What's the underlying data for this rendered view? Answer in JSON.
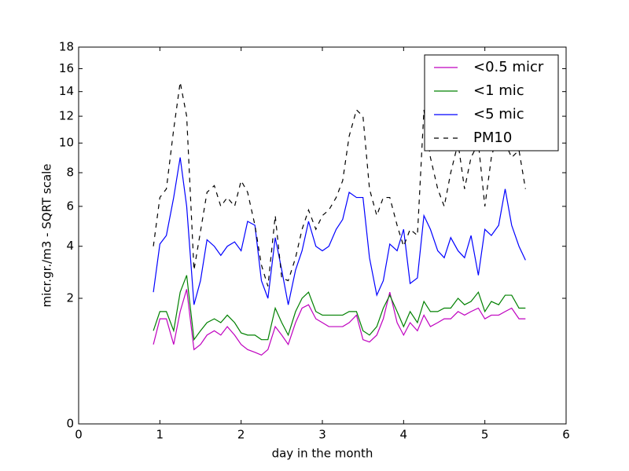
{
  "chart_data": {
    "type": "line",
    "xlabel": "day in the month",
    "ylabel": "micr.gr./m3 - SQRT scale",
    "yscale": "sqrt",
    "xlim": [
      0,
      6
    ],
    "xticks": [
      0,
      1,
      2,
      3,
      4,
      5,
      6
    ],
    "ylim": [
      0,
      18
    ],
    "yticks": [
      0,
      2,
      4,
      6,
      8,
      10,
      12,
      14,
      16,
      18
    ],
    "legend": "upper right",
    "x": [
      0.92,
      1.0,
      1.08,
      1.17,
      1.25,
      1.33,
      1.42,
      1.5,
      1.58,
      1.67,
      1.75,
      1.83,
      1.92,
      2.0,
      2.08,
      2.17,
      2.25,
      2.33,
      2.42,
      2.5,
      2.58,
      2.67,
      2.75,
      2.83,
      2.92,
      3.0,
      3.08,
      3.17,
      3.25,
      3.33,
      3.42,
      3.5,
      3.58,
      3.67,
      3.75,
      3.83,
      3.92,
      4.0,
      4.08,
      4.17,
      4.25,
      4.33,
      4.42,
      4.5,
      4.58,
      4.67,
      4.75,
      4.83,
      4.92,
      5.0,
      5.08,
      5.17,
      5.25,
      5.33,
      5.42,
      5.5
    ],
    "series": [
      {
        "name": "<0.5 micr",
        "color": "#bf00bf",
        "linestyle": "solid",
        "values": [
          0.8,
          1.4,
          1.4,
          0.8,
          1.6,
          2.3,
          0.7,
          0.8,
          1.0,
          1.1,
          1.0,
          1.2,
          1.0,
          0.8,
          0.7,
          0.65,
          0.6,
          0.7,
          1.2,
          1.0,
          0.8,
          1.3,
          1.7,
          1.8,
          1.4,
          1.3,
          1.2,
          1.2,
          1.2,
          1.3,
          1.5,
          0.9,
          0.85,
          1.0,
          1.4,
          2.2,
          1.3,
          1.0,
          1.3,
          1.1,
          1.5,
          1.2,
          1.3,
          1.4,
          1.4,
          1.6,
          1.5,
          1.6,
          1.7,
          1.4,
          1.5,
          1.5,
          1.6,
          1.7,
          1.4,
          1.4
        ]
      },
      {
        "name": "<1 mic",
        "color": "#008000",
        "linestyle": "solid",
        "values": [
          1.1,
          1.6,
          1.6,
          1.1,
          2.2,
          2.8,
          0.9,
          1.1,
          1.3,
          1.4,
          1.3,
          1.5,
          1.3,
          1.05,
          1.0,
          1.0,
          0.9,
          0.9,
          1.7,
          1.3,
          1.0,
          1.6,
          2.0,
          2.2,
          1.6,
          1.5,
          1.5,
          1.5,
          1.5,
          1.6,
          1.6,
          1.1,
          1.0,
          1.2,
          1.7,
          2.1,
          1.6,
          1.2,
          1.6,
          1.3,
          1.9,
          1.6,
          1.6,
          1.7,
          1.7,
          2.0,
          1.8,
          1.9,
          2.2,
          1.6,
          1.9,
          1.8,
          2.1,
          2.1,
          1.7,
          1.7
        ]
      },
      {
        "name": "<5 mic",
        "color": "#0000ff",
        "linestyle": "solid",
        "values": [
          2.2,
          4.1,
          4.5,
          6.5,
          9,
          6,
          1.8,
          2.6,
          4.3,
          4,
          3.6,
          4,
          4.2,
          3.8,
          5.2,
          5,
          2.6,
          2,
          4.4,
          3,
          1.8,
          3,
          3.8,
          5.2,
          4,
          3.8,
          4,
          4.8,
          5.3,
          6.8,
          6.5,
          6.5,
          3.5,
          2.1,
          2.6,
          4.1,
          3.8,
          4.8,
          2.5,
          2.7,
          5.5,
          4.8,
          3.8,
          3.5,
          4.4,
          3.8,
          3.5,
          4.5,
          2.8,
          4.8,
          4.5,
          5,
          7,
          5,
          4,
          3.4
        ]
      },
      {
        "name": "PM10",
        "color": "#000000",
        "linestyle": "dashed",
        "values": [
          4,
          6.5,
          7,
          11,
          14.8,
          12,
          3,
          4.7,
          6.8,
          7.2,
          6,
          6.5,
          6,
          7.5,
          6.8,
          5,
          3.2,
          2.4,
          5.5,
          2.7,
          2.6,
          3.5,
          4.8,
          5.8,
          4.8,
          5.5,
          5.8,
          6.5,
          7.5,
          10.5,
          12.5,
          12,
          7,
          5.5,
          6.5,
          6.5,
          5,
          4,
          4.8,
          4.5,
          12.5,
          9,
          7,
          6,
          8,
          10,
          7,
          9,
          10,
          6,
          9,
          11,
          10,
          9,
          9.5,
          7
        ]
      }
    ]
  }
}
